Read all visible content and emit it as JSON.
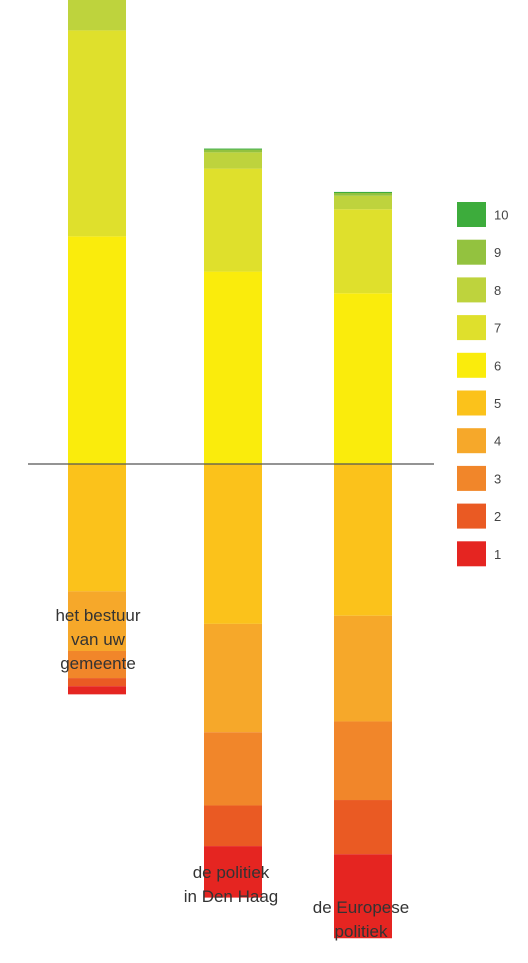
{
  "chart_data": {
    "type": "bar",
    "stacked": "diverging",
    "baseline_between": [
      "5",
      "6"
    ],
    "categories": [
      [
        "het bestuur",
        "van uw",
        "gemeente"
      ],
      [
        "de politiek",
        "in Den Haag"
      ],
      [
        "de Europese",
        "politiek"
      ]
    ],
    "series": [
      {
        "name": "1",
        "color": "#e52521",
        "values": [
          1.5,
          9.5,
          15.5
        ]
      },
      {
        "name": "2",
        "color": "#ea5a23",
        "values": [
          1.5,
          7.5,
          10
        ]
      },
      {
        "name": "3",
        "color": "#f1862a",
        "values": [
          5,
          13.5,
          14.5
        ]
      },
      {
        "name": "4",
        "color": "#f6a82a",
        "values": [
          11,
          20,
          19.5
        ]
      },
      {
        "name": "5",
        "color": "#fbc21b",
        "values": [
          23.5,
          29.5,
          28
        ]
      },
      {
        "name": "6",
        "color": "#faec0c",
        "values": [
          42,
          35.5,
          31.5
        ]
      },
      {
        "name": "7",
        "color": "#dfe02c",
        "values": [
          38,
          19,
          15.5
        ]
      },
      {
        "name": "8",
        "color": "#bed33d",
        "values": [
          12.5,
          3,
          2.5
        ]
      },
      {
        "name": "9",
        "color": "#93c23f",
        "values": [
          1,
          0.5,
          0.5
        ]
      },
      {
        "name": "10",
        "color": "#3dac3c",
        "values": [
          0.5,
          0.2,
          0.2
        ]
      }
    ],
    "legend_position": "right",
    "grid": false
  }
}
